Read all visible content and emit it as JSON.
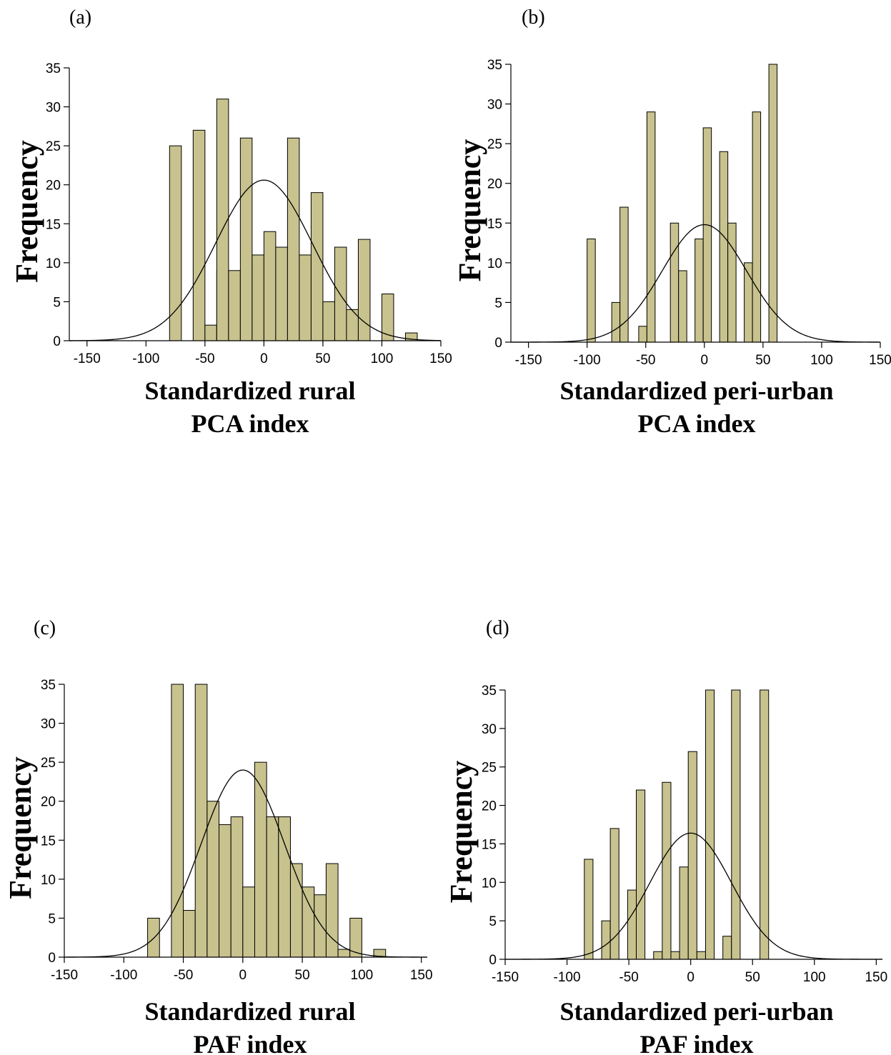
{
  "colors": {
    "bar": "#c8c28e",
    "outline": "#000000",
    "background": "#ffffff"
  },
  "chart_data": [
    {
      "type": "histogram",
      "panel": "(a)",
      "ylabel": "Frequency",
      "xlabel": [
        "Standardized rural",
        "PCA index"
      ],
      "xlim": [
        -165,
        150
      ],
      "ylim": [
        0,
        35
      ],
      "xticks": [
        -150,
        -100,
        -50,
        0,
        50,
        100,
        150
      ],
      "yticks": [
        0,
        5,
        10,
        15,
        20,
        25,
        30,
        35
      ],
      "normal_curve": {
        "mean": 0,
        "peak": 20.6,
        "sd": 41
      },
      "bars": [
        {
          "x0": -80,
          "x1": -70,
          "y": 25
        },
        {
          "x0": -60,
          "x1": -50,
          "y": 27
        },
        {
          "x0": -50,
          "x1": -40,
          "y": 2
        },
        {
          "x0": -40,
          "x1": -30,
          "y": 9
        },
        {
          "x0": -40,
          "x1": -30,
          "y": 31
        },
        {
          "x0": -30,
          "x1": -20,
          "y": 9
        },
        {
          "x0": -20,
          "x1": -10,
          "y": 26
        },
        {
          "x0": -10,
          "x1": 0,
          "y": 11
        },
        {
          "x0": 0,
          "x1": 10,
          "y": 14
        },
        {
          "x0": 10,
          "x1": 20,
          "y": 12
        },
        {
          "x0": 20,
          "x1": 30,
          "y": 26
        },
        {
          "x0": 30,
          "x1": 40,
          "y": 11
        },
        {
          "x0": 40,
          "x1": 50,
          "y": 19
        },
        {
          "x0": 50,
          "x1": 60,
          "y": 5
        },
        {
          "x0": 60,
          "x1": 70,
          "y": 12
        },
        {
          "x0": 70,
          "x1": 80,
          "y": 4
        },
        {
          "x0": 80,
          "x1": 90,
          "y": 13
        },
        {
          "x0": 100,
          "x1": 110,
          "y": 6
        },
        {
          "x0": 120,
          "x1": 130,
          "y": 1
        }
      ]
    },
    {
      "type": "histogram",
      "panel": "(b)",
      "ylabel": "Frequency",
      "xlabel": [
        "Standardized peri-urban",
        "PCA index"
      ],
      "xlim": [
        -165,
        150
      ],
      "ylim": [
        0,
        35
      ],
      "xticks": [
        -150,
        -100,
        -50,
        0,
        50,
        100,
        150
      ],
      "yticks": [
        0,
        5,
        10,
        15,
        20,
        25,
        30,
        35
      ],
      "normal_curve": {
        "mean": 0,
        "peak": 14.8,
        "sd": 36
      },
      "bars": [
        {
          "x0": -100,
          "x1": -93,
          "y": 13
        },
        {
          "x0": -79,
          "x1": -72,
          "y": 5
        },
        {
          "x0": -72,
          "x1": -65,
          "y": 17
        },
        {
          "x0": -56,
          "x1": -49,
          "y": 2
        },
        {
          "x0": -49,
          "x1": -42,
          "y": 29
        },
        {
          "x0": -29,
          "x1": -22,
          "y": 15
        },
        {
          "x0": -22,
          "x1": -15,
          "y": 9
        },
        {
          "x0": -8,
          "x1": -1,
          "y": 13
        },
        {
          "x0": -1,
          "x1": 6,
          "y": 27
        },
        {
          "x0": 13,
          "x1": 20,
          "y": 24
        },
        {
          "x0": 20,
          "x1": 27,
          "y": 15
        },
        {
          "x0": 34,
          "x1": 41,
          "y": 10
        },
        {
          "x0": 41,
          "x1": 48,
          "y": 29
        },
        {
          "x0": 55,
          "x1": 62,
          "y": 35
        }
      ]
    },
    {
      "type": "histogram",
      "panel": "(c)",
      "ylabel": "Frequency",
      "xlabel": [
        "Standardized rural",
        "PAF index"
      ],
      "xlim": [
        -150,
        155
      ],
      "ylim": [
        0,
        35
      ],
      "xticks": [
        -150,
        -100,
        -50,
        0,
        50,
        100,
        150
      ],
      "yticks": [
        0,
        5,
        10,
        15,
        20,
        25,
        30,
        35
      ],
      "normal_curve": {
        "mean": 0,
        "peak": 24,
        "sd": 35
      },
      "bars": [
        {
          "x0": -80,
          "x1": -70,
          "y": 5
        },
        {
          "x0": -60,
          "x1": -50,
          "y": 35
        },
        {
          "x0": -50,
          "x1": -40,
          "y": 6
        },
        {
          "x0": -40,
          "x1": -30,
          "y": 35
        },
        {
          "x0": -30,
          "x1": -20,
          "y": 20
        },
        {
          "x0": -20,
          "x1": -10,
          "y": 17
        },
        {
          "x0": -10,
          "x1": 0,
          "y": 18
        },
        {
          "x0": 0,
          "x1": 10,
          "y": 9
        },
        {
          "x0": 10,
          "x1": 20,
          "y": 25
        },
        {
          "x0": 20,
          "x1": 30,
          "y": 18
        },
        {
          "x0": 30,
          "x1": 40,
          "y": 18
        },
        {
          "x0": 40,
          "x1": 50,
          "y": 12
        },
        {
          "x0": 50,
          "x1": 60,
          "y": 9
        },
        {
          "x0": 60,
          "x1": 70,
          "y": 8
        },
        {
          "x0": 70,
          "x1": 80,
          "y": 12
        },
        {
          "x0": 80,
          "x1": 90,
          "y": 1
        },
        {
          "x0": 90,
          "x1": 100,
          "y": 5
        },
        {
          "x0": 110,
          "x1": 120,
          "y": 1
        }
      ]
    },
    {
      "type": "histogram",
      "panel": "(d)",
      "ylabel": "Frequency",
      "xlabel": [
        "Standardized peri-urban",
        "PAF index"
      ],
      "xlim": [
        -150,
        155
      ],
      "ylim": [
        0,
        35
      ],
      "xticks": [
        -150,
        -100,
        -50,
        0,
        50,
        100,
        150
      ],
      "yticks": [
        0,
        5,
        10,
        15,
        20,
        25,
        30,
        35
      ],
      "normal_curve": {
        "mean": 0,
        "peak": 16.4,
        "sd": 33
      },
      "bars": [
        {
          "x0": -86,
          "x1": -79,
          "y": 13
        },
        {
          "x0": -72,
          "x1": -65,
          "y": 5
        },
        {
          "x0": -65,
          "x1": -58,
          "y": 17
        },
        {
          "x0": -51,
          "x1": -44,
          "y": 9
        },
        {
          "x0": -44,
          "x1": -37,
          "y": 22
        },
        {
          "x0": -30,
          "x1": -23,
          "y": 1
        },
        {
          "x0": -23,
          "x1": -16,
          "y": 23
        },
        {
          "x0": -16,
          "x1": -9,
          "y": 1
        },
        {
          "x0": -9,
          "x1": -2,
          "y": 12
        },
        {
          "x0": -2,
          "x1": 5,
          "y": 27
        },
        {
          "x0": 5,
          "x1": 12,
          "y": 1
        },
        {
          "x0": 12,
          "x1": 19,
          "y": 35
        },
        {
          "x0": 26,
          "x1": 33,
          "y": 3
        },
        {
          "x0": 33,
          "x1": 40,
          "y": 35
        },
        {
          "x0": 56,
          "x1": 63,
          "y": 35
        }
      ]
    }
  ]
}
